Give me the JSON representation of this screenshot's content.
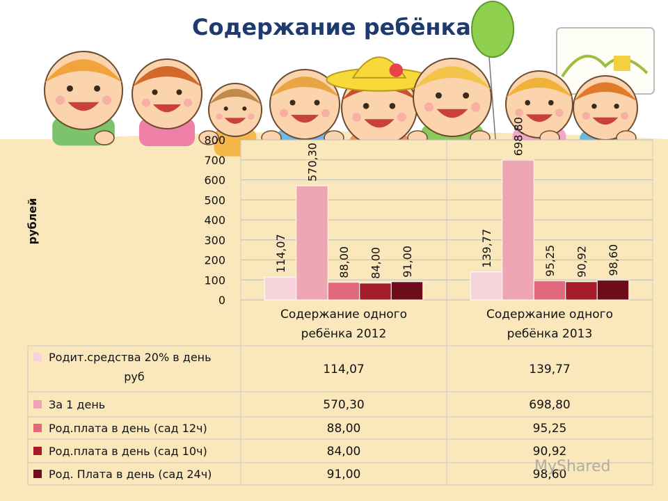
{
  "title": "Содержание ребёнка",
  "watermark": "MyShared",
  "chart_data": {
    "type": "bar",
    "ylabel": "рублей",
    "ylim": [
      0,
      800
    ],
    "yticks": [
      0,
      100,
      200,
      300,
      400,
      500,
      600,
      700,
      800
    ],
    "grid": true,
    "categories": [
      "Содержание одного ребёнка 2012",
      "Содержание одного ребёнка 2013"
    ],
    "series": [
      {
        "name": "Родит.средства 20% в день руб",
        "values": [
          114.07,
          139.77
        ],
        "labels": [
          "114,07",
          "139,77"
        ],
        "color": "#f7d3dc"
      },
      {
        "name": "За 1 день",
        "values": [
          570.3,
          698.8
        ],
        "labels": [
          "570,30",
          "698,80"
        ],
        "color": "#eea6b2"
      },
      {
        "name": "Род.плата в день (сад 12ч)",
        "values": [
          88.0,
          95.25
        ],
        "labels": [
          "88,00",
          "95,25"
        ],
        "color": "#e0697b"
      },
      {
        "name": "Род.плата в день (сад 10ч)",
        "values": [
          84.0,
          90.92
        ],
        "labels": [
          "84,00",
          "90,92"
        ],
        "color": "#a51c2b"
      },
      {
        "name": "Род. Плата в день (сад 24ч)",
        "values": [
          91.0,
          98.6
        ],
        "labels": [
          "91,00",
          "98,60"
        ],
        "color": "#6f0e1a"
      }
    ]
  }
}
